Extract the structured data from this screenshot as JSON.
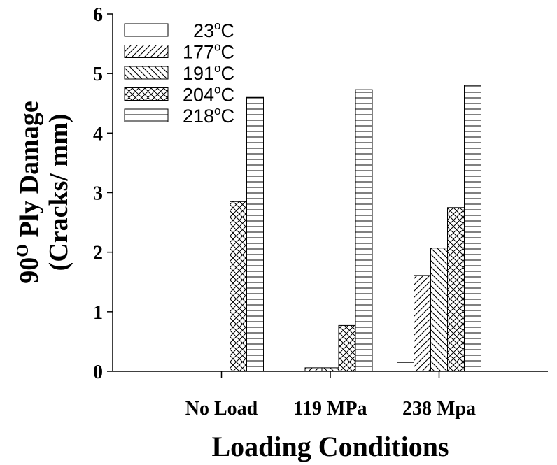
{
  "chart_data": {
    "type": "bar",
    "categories": [
      "No Load",
      "119 MPa",
      "238 Mpa"
    ],
    "series": [
      {
        "name": "23°C",
        "values": [
          0,
          0,
          0.15
        ]
      },
      {
        "name": "177°C",
        "values": [
          0,
          0.06,
          1.61
        ]
      },
      {
        "name": "191°C",
        "values": [
          0,
          0.06,
          2.07
        ]
      },
      {
        "name": "204°C",
        "values": [
          2.85,
          0.77,
          2.75
        ]
      },
      {
        "name": "218°C",
        "values": [
          4.6,
          4.73,
          4.8
        ]
      }
    ],
    "xlabel": "Loading Conditions",
    "ylabel_line1": "90",
    "ylabel_sup": "O",
    "ylabel_line1_rest": " Ply Damage",
    "ylabel_line2": "(Cracks/ mm)",
    "ylim": [
      0,
      6
    ],
    "yticks": [
      0,
      1,
      2,
      3,
      4,
      5,
      6
    ],
    "legend_position": "top-left",
    "legend_labels": [
      {
        "base": "23",
        "sup": "o",
        "unit": "C"
      },
      {
        "base": "177",
        "sup": "o",
        "unit": "C"
      },
      {
        "base": "191",
        "sup": "o",
        "unit": "C"
      },
      {
        "base": "204",
        "sup": "o",
        "unit": "C"
      },
      {
        "base": "218",
        "sup": "o",
        "unit": "C"
      }
    ],
    "patterns": [
      "none",
      "diagonal-forward",
      "diagonal-back",
      "crosshatch",
      "horizontal"
    ]
  }
}
